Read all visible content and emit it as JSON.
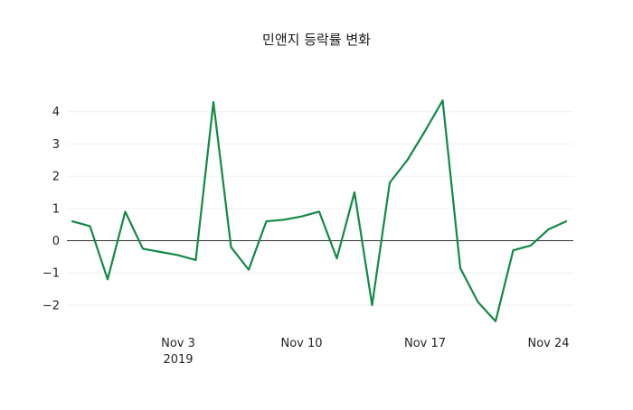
{
  "page": {
    "background": "#ffffff"
  },
  "chart_data": {
    "type": "line",
    "title": "민앤지 등락률 변화",
    "xlabel": "",
    "ylabel": "",
    "series_name": "등락률",
    "line_color": "#138a45",
    "zero_line_color": "#333333",
    "grid": true,
    "legend": "none",
    "ylim": [
      -2.9,
      4.8
    ],
    "yticks": [
      -2,
      -1,
      0,
      1,
      2,
      3,
      4
    ],
    "xticks": [
      {
        "index": 6,
        "label": "Nov 3",
        "sublabel": "2019"
      },
      {
        "index": 13,
        "label": "Nov 10",
        "sublabel": ""
      },
      {
        "index": 20,
        "label": "Nov 17",
        "sublabel": ""
      },
      {
        "index": 27,
        "label": "Nov 24",
        "sublabel": ""
      }
    ],
    "x": [
      "2019-10-28",
      "2019-10-29",
      "2019-10-30",
      "2019-10-31",
      "2019-11-01",
      "2019-11-02",
      "2019-11-03",
      "2019-11-04",
      "2019-11-05",
      "2019-11-06",
      "2019-11-07",
      "2019-11-08",
      "2019-11-09",
      "2019-11-10",
      "2019-11-11",
      "2019-11-12",
      "2019-11-13",
      "2019-11-14",
      "2019-11-15",
      "2019-11-16",
      "2019-11-17",
      "2019-11-18",
      "2019-11-19",
      "2019-11-20",
      "2019-11-21",
      "2019-11-22",
      "2019-11-23",
      "2019-11-24",
      "2019-11-25"
    ],
    "values": [
      0.6,
      0.45,
      -1.2,
      0.9,
      -0.25,
      -0.35,
      -0.45,
      -0.6,
      4.3,
      -0.2,
      -0.9,
      0.6,
      0.65,
      0.75,
      0.9,
      -0.55,
      1.5,
      -2.0,
      1.8,
      2.5,
      3.4,
      4.35,
      -0.85,
      -1.9,
      -2.5,
      -0.3,
      -0.15,
      0.35,
      0.6
    ]
  }
}
